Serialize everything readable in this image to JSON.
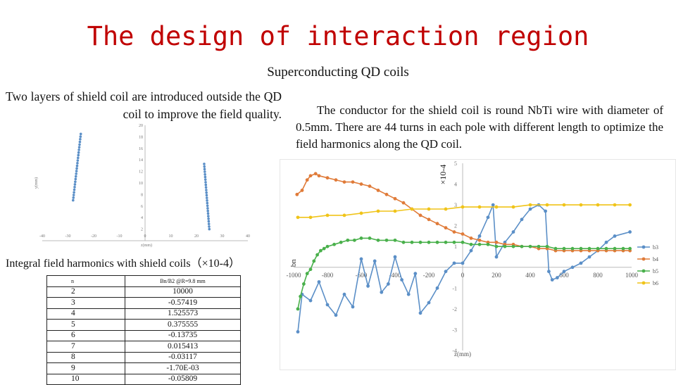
{
  "slide": {
    "title": "The design of interaction region",
    "subtitle": "Superconducting QD coils",
    "left_description": "Two layers of shield coil are introduced outside the QD coil to improve the field quality.",
    "right_description": "The conductor for the shield coil is round NbTi wire with diameter of 0.5mm. There are 44 turns in each pole with different length to optimize the field harmonics along the QD coil.",
    "harmonics_title": "Integral field harmonics with shield coils（×10-4）"
  },
  "harmonics_table": {
    "header": [
      "n",
      "Bn/B2 @R=9.8 mm"
    ],
    "rows": [
      [
        "2",
        "10000"
      ],
      [
        "3",
        "-0.57419"
      ],
      [
        "4",
        "1.525573"
      ],
      [
        "5",
        "0.375555"
      ],
      [
        "6",
        "-0.13735"
      ],
      [
        "7",
        "0.015413"
      ],
      [
        "8",
        "-0.03117"
      ],
      [
        "9",
        "-1.70E-03"
      ],
      [
        "10",
        "-0.05809"
      ]
    ]
  },
  "chart_data": [
    {
      "type": "scatter",
      "title": "",
      "xlabel": "z(mm)",
      "ylabel": "y(mm)",
      "xlim": [
        -40,
        40
      ],
      "ylim": [
        0,
        20
      ],
      "x_ticks": [
        "-40",
        "-30",
        "-20",
        "-10",
        "0",
        "10",
        "20",
        "30",
        "40"
      ],
      "y_ticks": [
        "2",
        "4",
        "6",
        "8",
        "10",
        "12",
        "14",
        "16",
        "18",
        "20"
      ],
      "grid": false,
      "series": [
        {
          "points": [
            [
              -28,
              7
            ],
            [
              -25,
              18.5
            ]
          ]
        },
        {
          "points": [
            [
              23,
              13.3
            ],
            [
              25,
              2
            ]
          ]
        }
      ]
    },
    {
      "type": "line",
      "title": "",
      "xlabel": "z(mm)",
      "ylabel": "bn",
      "y_multiplier_label": "×10-4",
      "xlim": [
        -1000,
        1000
      ],
      "ylim": [
        -4,
        5
      ],
      "x_ticks": [
        "-1000",
        "-800",
        "-600",
        "-400",
        "-200",
        "0",
        "200",
        "400",
        "600",
        "800",
        "1000"
      ],
      "y_ticks": [
        "-4",
        "-3",
        "-2",
        "-1",
        "0",
        "1",
        "2",
        "3",
        "4",
        "5"
      ],
      "legend_position": "right",
      "grid": false,
      "series": [
        {
          "name": "b3",
          "color": "#5b8fc7",
          "points": [
            [
              -975,
              -3.1
            ],
            [
              -950,
              -1.3
            ],
            [
              -900,
              -1.6
            ],
            [
              -850,
              -0.7
            ],
            [
              -800,
              -1.8
            ],
            [
              -750,
              -2.3
            ],
            [
              -700,
              -1.3
            ],
            [
              -650,
              -1.9
            ],
            [
              -600,
              0.4
            ],
            [
              -560,
              -0.9
            ],
            [
              -520,
              0.3
            ],
            [
              -480,
              -1.2
            ],
            [
              -440,
              -0.8
            ],
            [
              -400,
              0.5
            ],
            [
              -360,
              -0.6
            ],
            [
              -320,
              -1.3
            ],
            [
              -280,
              -0.3
            ],
            [
              -250,
              -2.2
            ],
            [
              -200,
              -1.7
            ],
            [
              -150,
              -1
            ],
            [
              -100,
              -0.2
            ],
            [
              -50,
              0.2
            ],
            [
              0,
              0.2
            ],
            [
              50,
              0.8
            ],
            [
              100,
              1.5
            ],
            [
              150,
              2.4
            ],
            [
              180,
              3
            ],
            [
              200,
              0.5
            ],
            [
              250,
              1.2
            ],
            [
              300,
              1.7
            ],
            [
              350,
              2.3
            ],
            [
              400,
              2.8
            ],
            [
              450,
              3
            ],
            [
              490,
              2.7
            ],
            [
              510,
              -0.2
            ],
            [
              530,
              -0.6
            ],
            [
              560,
              -0.5
            ],
            [
              600,
              -0.2
            ],
            [
              650,
              0
            ],
            [
              700,
              0.2
            ],
            [
              750,
              0.5
            ],
            [
              800,
              0.8
            ],
            [
              850,
              1.2
            ],
            [
              900,
              1.5
            ],
            [
              990,
              1.7
            ]
          ]
        },
        {
          "name": "b4",
          "color": "#e07b39",
          "points": [
            [
              -980,
              3.5
            ],
            [
              -950,
              3.7
            ],
            [
              -920,
              4.2
            ],
            [
              -900,
              4.4
            ],
            [
              -870,
              4.5
            ],
            [
              -850,
              4.4
            ],
            [
              -800,
              4.3
            ],
            [
              -750,
              4.2
            ],
            [
              -700,
              4.1
            ],
            [
              -650,
              4.1
            ],
            [
              -600,
              4
            ],
            [
              -550,
              3.9
            ],
            [
              -500,
              3.7
            ],
            [
              -450,
              3.5
            ],
            [
              -400,
              3.3
            ],
            [
              -350,
              3.1
            ],
            [
              -300,
              2.8
            ],
            [
              -250,
              2.5
            ],
            [
              -200,
              2.3
            ],
            [
              -150,
              2.1
            ],
            [
              -100,
              1.9
            ],
            [
              -50,
              1.7
            ],
            [
              0,
              1.6
            ],
            [
              50,
              1.4
            ],
            [
              100,
              1.3
            ],
            [
              150,
              1.2
            ],
            [
              200,
              1.2
            ],
            [
              250,
              1.1
            ],
            [
              300,
              1.1
            ],
            [
              350,
              1
            ],
            [
              400,
              1
            ],
            [
              450,
              0.9
            ],
            [
              500,
              0.9
            ],
            [
              550,
              0.8
            ],
            [
              600,
              0.8
            ],
            [
              650,
              0.8
            ],
            [
              700,
              0.8
            ],
            [
              750,
              0.8
            ],
            [
              800,
              0.8
            ],
            [
              850,
              0.8
            ],
            [
              900,
              0.8
            ],
            [
              950,
              0.8
            ],
            [
              990,
              0.8
            ]
          ]
        },
        {
          "name": "b5",
          "color": "#49b04b",
          "points": [
            [
              -975,
              -2
            ],
            [
              -960,
              -1.4
            ],
            [
              -940,
              -0.8
            ],
            [
              -920,
              -0.3
            ],
            [
              -900,
              -0.1
            ],
            [
              -880,
              0.3
            ],
            [
              -860,
              0.6
            ],
            [
              -840,
              0.8
            ],
            [
              -820,
              0.9
            ],
            [
              -800,
              1
            ],
            [
              -760,
              1.1
            ],
            [
              -720,
              1.2
            ],
            [
              -680,
              1.3
            ],
            [
              -640,
              1.3
            ],
            [
              -600,
              1.4
            ],
            [
              -550,
              1.4
            ],
            [
              -500,
              1.3
            ],
            [
              -450,
              1.3
            ],
            [
              -400,
              1.3
            ],
            [
              -350,
              1.2
            ],
            [
              -300,
              1.2
            ],
            [
              -250,
              1.2
            ],
            [
              -200,
              1.2
            ],
            [
              -150,
              1.2
            ],
            [
              -100,
              1.2
            ],
            [
              -50,
              1.2
            ],
            [
              0,
              1.2
            ],
            [
              50,
              1.1
            ],
            [
              100,
              1.1
            ],
            [
              150,
              1.1
            ],
            [
              200,
              1
            ],
            [
              250,
              1
            ],
            [
              300,
              1
            ],
            [
              350,
              1
            ],
            [
              400,
              1
            ],
            [
              450,
              1
            ],
            [
              500,
              1
            ],
            [
              550,
              0.9
            ],
            [
              600,
              0.9
            ],
            [
              650,
              0.9
            ],
            [
              700,
              0.9
            ],
            [
              750,
              0.9
            ],
            [
              800,
              0.9
            ],
            [
              850,
              0.9
            ],
            [
              900,
              0.9
            ],
            [
              950,
              0.9
            ],
            [
              990,
              0.9
            ]
          ]
        },
        {
          "name": "b6",
          "color": "#f0c419",
          "points": [
            [
              -975,
              2.4
            ],
            [
              -900,
              2.4
            ],
            [
              -800,
              2.5
            ],
            [
              -700,
              2.5
            ],
            [
              -600,
              2.6
            ],
            [
              -500,
              2.7
            ],
            [
              -400,
              2.7
            ],
            [
              -300,
              2.8
            ],
            [
              -200,
              2.8
            ],
            [
              -100,
              2.8
            ],
            [
              0,
              2.9
            ],
            [
              100,
              2.9
            ],
            [
              200,
              2.9
            ],
            [
              300,
              2.9
            ],
            [
              400,
              3
            ],
            [
              500,
              3
            ],
            [
              600,
              3
            ],
            [
              700,
              3
            ],
            [
              800,
              3
            ],
            [
              900,
              3
            ],
            [
              990,
              3
            ]
          ]
        }
      ]
    }
  ]
}
